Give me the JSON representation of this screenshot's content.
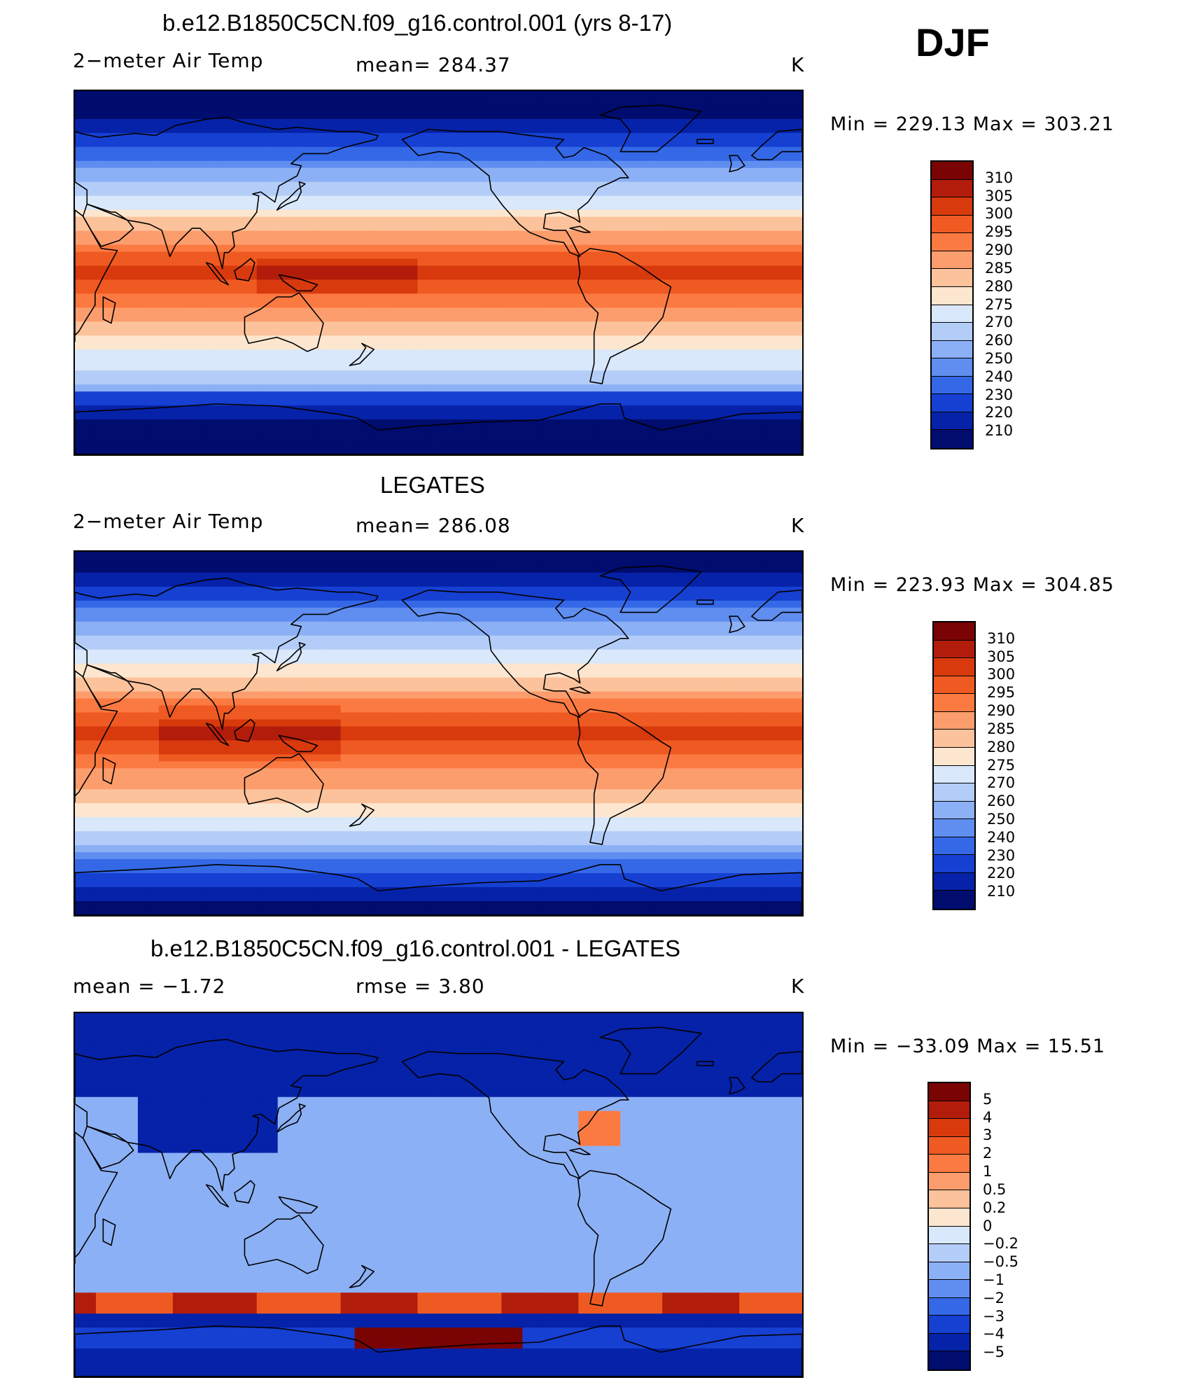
{
  "season": "DJF",
  "panels": [
    {
      "title": "b.e12.B1850C5CN.f09_g16.control.001 (yrs 8-17)",
      "left_label": "2−meter Air Temp",
      "center_label": "mean=  284.37",
      "units": "K",
      "minmax": "Min  =  229.13  Max  =  303.21",
      "field": "model",
      "colorbar_labels": [
        "310",
        "305",
        "300",
        "295",
        "290",
        "285",
        "280",
        "275",
        "270",
        "260",
        "250",
        "240",
        "230",
        "220",
        "210"
      ]
    },
    {
      "title": "LEGATES",
      "left_label": "2−meter Air Temp",
      "center_label": "mean=  286.08",
      "units": "K",
      "minmax": "Min  =  223.93  Max  =  304.85",
      "field": "obs",
      "colorbar_labels": [
        "310",
        "305",
        "300",
        "295",
        "290",
        "285",
        "280",
        "275",
        "270",
        "260",
        "250",
        "240",
        "230",
        "220",
        "210"
      ]
    },
    {
      "title": "b.e12.B1850C5CN.f09_g16.control.001 - LEGATES",
      "left_label": "mean  =    −1.72",
      "center_label": "rmse  =     3.80",
      "units": "K",
      "minmax": "Min  =  −33.09  Max  =    15.51",
      "field": "diff",
      "colorbar_labels": [
        "5",
        "4",
        "3",
        "2",
        "1",
        "0.5",
        "0.2",
        "0",
        "−0.2",
        "−0.5",
        "−1",
        "−2",
        "−3",
        "−4",
        "−5"
      ]
    }
  ],
  "palette": [
    "#7a0403",
    "#b21d0b",
    "#d83a0e",
    "#ef5a22",
    "#fb7a42",
    "#fc9d6d",
    "#fcc29b",
    "#fde6cf",
    "#d9e8fa",
    "#b4cdf8",
    "#8cb0f5",
    "#5f8ef0",
    "#3468e6",
    "#1640d2",
    "#0522a8",
    "#000c6e"
  ]
}
